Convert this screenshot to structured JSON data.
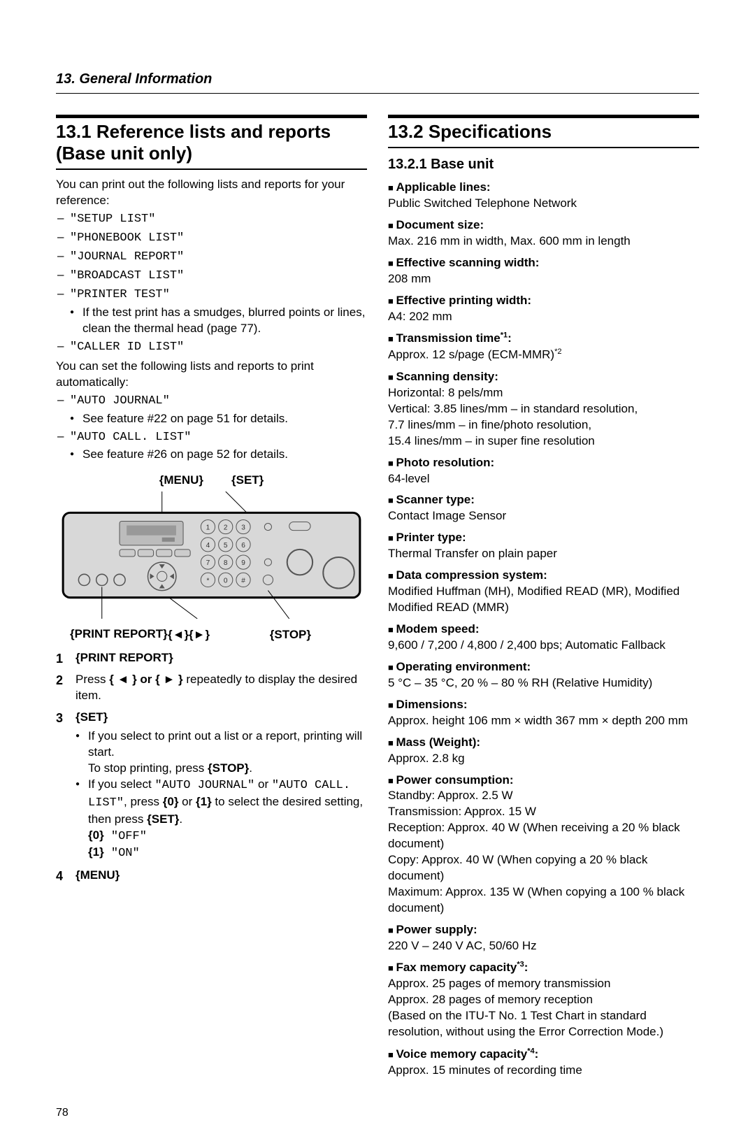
{
  "chapter_header": "13. General Information",
  "page_number": "78",
  "left": {
    "title": "13.1 Reference lists and reports (Base unit only)",
    "intro": "You can print out the following lists and reports for your reference:",
    "ref_list": [
      "\"SETUP LIST\"",
      "\"PHONEBOOK LIST\"",
      "\"JOURNAL REPORT\"",
      "\"BROADCAST LIST\"",
      "\"PRINTER TEST\"",
      "\"CALLER ID LIST\""
    ],
    "printer_test_note": "If the test print has a smudges, blurred points or lines, clean the thermal head (page 77).",
    "auto_intro": "You can set the following lists and reports to print automatically:",
    "auto_list": [
      {
        "name": "\"AUTO JOURNAL\"",
        "note": "See feature #22 on page 51 for details."
      },
      {
        "name": "\"AUTO CALL. LIST\"",
        "note": "See feature #26 on page 52 for details."
      }
    ],
    "diagram_labels": {
      "menu": "{MENU}",
      "set": "{SET}",
      "arrows": "{◄}{►}",
      "stop": "{STOP}",
      "print_report": "{PRINT REPORT}"
    },
    "steps": {
      "s1": "{PRINT REPORT}",
      "s2_pre": "Press ",
      "s2_keys": "{ ◄ } or { ► }",
      "s2_post": " repeatedly to display the desired item.",
      "s3_head": "{SET}",
      "s3_b1_pre": "If you select to print out a list or a report, printing will start.",
      "s3_b1_line2_pre": "To stop printing, press ",
      "s3_b1_stop": "{STOP}",
      "s3_b1_line2_post": ".",
      "s3_b2_pre": "If you select ",
      "s3_b2_q1": "\"AUTO JOURNAL\"",
      "s3_b2_or": " or ",
      "s3_b2_q2": "\"AUTO CALL. LIST\"",
      "s3_b2_mid": ", press ",
      "s3_b2_k0": "{0}",
      "s3_b2_or2": " or ",
      "s3_b2_k1": "{1}",
      "s3_b2_post": " to select the desired setting, then press ",
      "s3_b2_set": "{SET}",
      "s3_b2_end": ".",
      "s3_opt0_k": "{0}",
      "s3_opt0_v": " \"OFF\"",
      "s3_opt1_k": "{1}",
      "s3_opt1_v": " \"ON\"",
      "s4": "{MENU}"
    }
  },
  "right": {
    "title": "13.2 Specifications",
    "subsection": "13.2.1 Base unit",
    "specs": [
      {
        "label": "Applicable lines:",
        "value": "Public Switched Telephone Network"
      },
      {
        "label": "Document size:",
        "value": "Max. 216 mm in width, Max. 600 mm in length"
      },
      {
        "label": "Effective scanning width:",
        "value": "208 mm"
      },
      {
        "label": "Effective printing width:",
        "value": "A4: 202 mm"
      },
      {
        "label": "Transmission time",
        "sup": "*1",
        "label_suffix": ":",
        "value": "Approx. 12 s/page (ECM-MMR)",
        "value_sup": "*2"
      },
      {
        "label": "Scanning density:",
        "value": "Horizontal: 8 pels/mm\nVertical: 3.85 lines/mm – in standard resolution,\n7.7 lines/mm – in fine/photo resolution,\n15.4 lines/mm – in super fine resolution"
      },
      {
        "label": "Photo resolution:",
        "value": "64-level"
      },
      {
        "label": "Scanner type:",
        "value": "Contact Image Sensor"
      },
      {
        "label": "Printer type:",
        "value": "Thermal Transfer on plain paper"
      },
      {
        "label": "Data compression system:",
        "value": "Modified Huffman (MH), Modified READ (MR), Modified Modified READ (MMR)"
      },
      {
        "label": "Modem speed:",
        "value": "9,600 / 7,200 / 4,800 / 2,400 bps; Automatic Fallback"
      },
      {
        "label": "Operating environment:",
        "value": "5 °C – 35 °C, 20 % – 80 % RH (Relative Humidity)"
      },
      {
        "label": "Dimensions:",
        "value": "Approx. height 106 mm × width 367 mm × depth 200 mm"
      },
      {
        "label": "Mass (Weight):",
        "value": "Approx. 2.8 kg"
      },
      {
        "label": "Power consumption:",
        "value": "Standby: Approx. 2.5 W\nTransmission: Approx. 15 W\nReception: Approx. 40 W (When receiving a 20 % black document)\nCopy: Approx. 40 W (When copying a 20 % black document)\nMaximum: Approx. 135 W (When copying a 100 % black document)"
      },
      {
        "label": "Power supply:",
        "value": "220 V – 240 V AC, 50/60 Hz"
      },
      {
        "label": "Fax memory capacity",
        "sup": "*3",
        "label_suffix": ":",
        "value": "Approx. 25 pages of memory transmission\nApprox. 28 pages of memory reception\n(Based on the ITU-T No. 1 Test Chart in standard resolution, without using the Error Correction Mode.)"
      },
      {
        "label": "Voice memory capacity",
        "sup": "*4",
        "label_suffix": ":",
        "value": "Approx. 15 minutes of recording time"
      }
    ]
  }
}
